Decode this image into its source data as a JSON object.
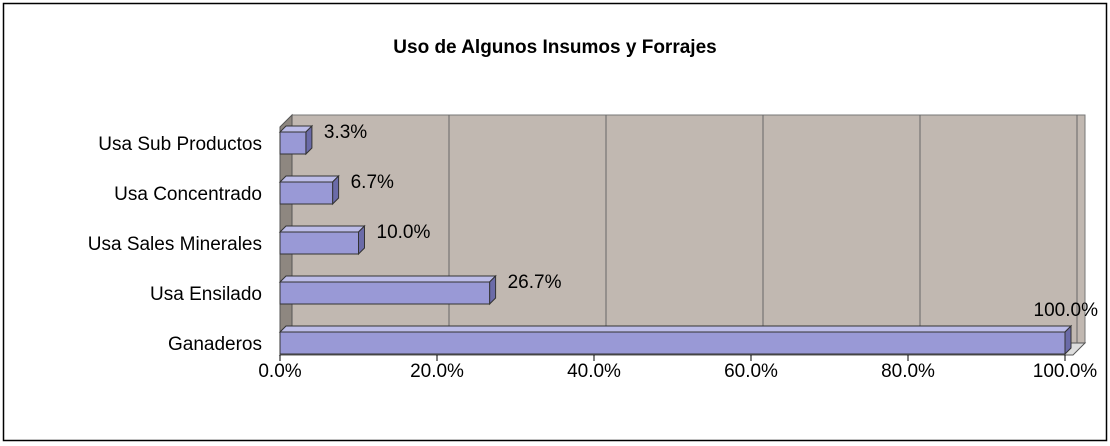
{
  "chart_data": {
    "type": "bar",
    "orientation": "horizontal",
    "title": "Uso de Algunos Insumos y Forrajes",
    "categories": [
      "Usa Sub Productos",
      "Usa Concentrado",
      "Usa Sales Minerales",
      "Usa Ensilado",
      "Ganaderos"
    ],
    "values": [
      3.3,
      6.7,
      10.0,
      26.7,
      100.0
    ],
    "value_labels": [
      "3.3%",
      "6.7%",
      "10.0%",
      "26.7%",
      "100.0%"
    ],
    "color": "#9999d6",
    "xlim": [
      0,
      100
    ],
    "xticks": [
      {
        "value": 0,
        "label": "0.0%"
      },
      {
        "value": 20,
        "label": "20.0%"
      },
      {
        "value": 40,
        "label": "40.0%"
      },
      {
        "value": 60,
        "label": "60.0%"
      },
      {
        "value": 80,
        "label": "80.0%"
      },
      {
        "value": 100,
        "label": "100.0%"
      }
    ],
    "grid": true
  }
}
